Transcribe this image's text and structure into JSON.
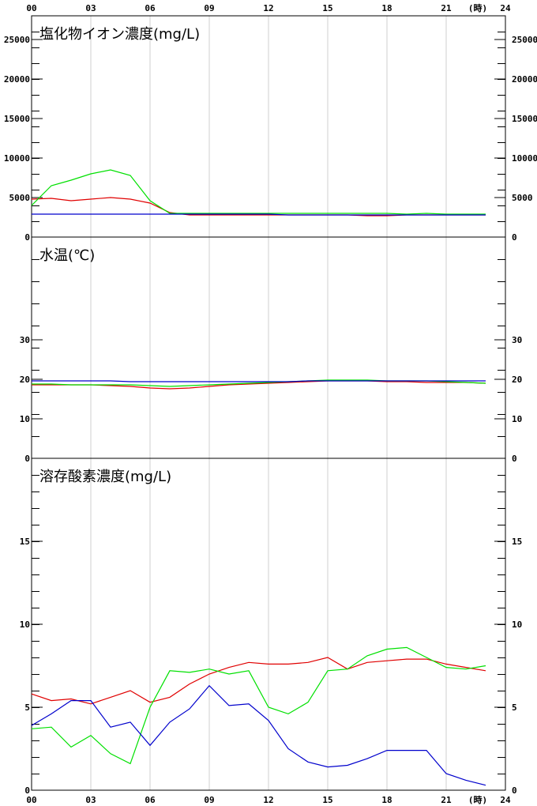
{
  "hour_axis": {
    "top_labels": [
      "00",
      "03",
      "06",
      "09",
      "12",
      "15",
      "18",
      "21",
      "24"
    ],
    "bottom_labels": [
      "00",
      "03",
      "06",
      "09",
      "12",
      "15",
      "18",
      "21",
      "24"
    ],
    "unit": "(時)"
  },
  "colors": {
    "red": "#e00000",
    "green": "#00e000",
    "blue": "#0000cc",
    "grid": "#cfcfcf"
  },
  "chart_data": [
    {
      "type": "line",
      "title": "塩化物イオン濃度(mg/L)",
      "x": [
        0,
        1,
        2,
        3,
        4,
        5,
        6,
        7,
        8,
        9,
        10,
        11,
        12,
        13,
        14,
        15,
        16,
        17,
        18,
        19,
        20,
        21,
        22,
        23
      ],
      "ylim": [
        0,
        28000
      ],
      "yticks": [
        0,
        5000,
        10000,
        15000,
        20000,
        25000
      ],
      "ytick_labels": [
        "0",
        "5000",
        "10000",
        "15000",
        "20000",
        "25000"
      ],
      "series": [
        {
          "color": "red",
          "values": [
            4800,
            4900,
            4600,
            4800,
            5000,
            4800,
            4300,
            3100,
            2800,
            2800,
            2800,
            2800,
            2800,
            2800,
            2800,
            2800,
            2800,
            2700,
            2700,
            2800,
            2800,
            2800,
            2800,
            2800
          ]
        },
        {
          "color": "green",
          "values": [
            4000,
            6500,
            7200,
            8000,
            8500,
            7800,
            4600,
            3000,
            3000,
            3000,
            3000,
            3000,
            3000,
            3000,
            3000,
            3000,
            3000,
            3000,
            3000,
            2900,
            3000,
            2900,
            2900,
            2900
          ]
        },
        {
          "color": "blue",
          "values": [
            2900,
            2900,
            2900,
            2900,
            2900,
            2900,
            2900,
            2900,
            2900,
            2900,
            2900,
            2900,
            2900,
            2800,
            2800,
            2800,
            2800,
            2800,
            2800,
            2800,
            2800,
            2800,
            2800,
            2800
          ]
        }
      ]
    },
    {
      "type": "line",
      "title": "水温(℃)",
      "x": [
        0,
        1,
        2,
        3,
        4,
        5,
        6,
        7,
        8,
        9,
        10,
        11,
        12,
        13,
        14,
        15,
        16,
        17,
        18,
        19,
        20,
        21,
        22,
        23
      ],
      "ylim": [
        0,
        56
      ],
      "yticks": [
        0,
        10,
        20,
        30
      ],
      "ytick_labels": [
        "0",
        "10",
        "20",
        "30"
      ],
      "series": [
        {
          "color": "red",
          "values": [
            18.6,
            18.6,
            18.6,
            18.6,
            18.4,
            18.2,
            17.8,
            17.6,
            17.8,
            18.2,
            18.6,
            18.8,
            19.0,
            19.2,
            19.4,
            19.6,
            19.6,
            19.6,
            19.4,
            19.4,
            19.2,
            19.2,
            19.2,
            19.0
          ]
        },
        {
          "color": "green",
          "values": [
            18.8,
            18.8,
            18.6,
            18.6,
            18.6,
            18.6,
            18.4,
            18.2,
            18.4,
            18.6,
            18.8,
            19.0,
            19.2,
            19.4,
            19.6,
            19.8,
            19.8,
            19.8,
            19.6,
            19.6,
            19.6,
            19.4,
            19.2,
            19.0
          ]
        },
        {
          "color": "blue",
          "values": [
            19.6,
            19.6,
            19.6,
            19.6,
            19.6,
            19.4,
            19.4,
            19.4,
            19.4,
            19.4,
            19.4,
            19.4,
            19.4,
            19.4,
            19.6,
            19.6,
            19.6,
            19.6,
            19.6,
            19.6,
            19.6,
            19.6,
            19.6,
            19.6
          ]
        }
      ]
    },
    {
      "type": "line",
      "title": "溶存酸素濃度(mg/L)",
      "x": [
        0,
        1,
        2,
        3,
        4,
        5,
        6,
        7,
        8,
        9,
        10,
        11,
        12,
        13,
        14,
        15,
        16,
        17,
        18,
        19,
        20,
        21,
        22,
        23
      ],
      "ylim": [
        0,
        20
      ],
      "yticks": [
        0,
        5,
        10,
        15
      ],
      "ytick_labels": [
        "0",
        "5",
        "10",
        "15"
      ],
      "series": [
        {
          "color": "red",
          "values": [
            5.8,
            5.4,
            5.5,
            5.2,
            5.6,
            6.0,
            5.3,
            5.6,
            6.4,
            7.0,
            7.4,
            7.7,
            7.6,
            7.6,
            7.7,
            8.0,
            7.3,
            7.7,
            7.8,
            7.9,
            7.9,
            7.6,
            7.4,
            7.2
          ]
        },
        {
          "color": "green",
          "values": [
            3.7,
            3.8,
            2.6,
            3.3,
            2.2,
            1.6,
            5.0,
            7.2,
            7.1,
            7.3,
            7.0,
            7.2,
            5.0,
            4.6,
            5.3,
            7.2,
            7.3,
            8.1,
            8.5,
            8.6,
            8.0,
            7.4,
            7.3,
            7.5
          ]
        },
        {
          "color": "blue",
          "values": [
            3.9,
            4.6,
            5.4,
            5.4,
            3.8,
            4.1,
            2.7,
            4.1,
            4.9,
            6.3,
            5.1,
            5.2,
            4.2,
            2.5,
            1.7,
            1.4,
            1.5,
            1.9,
            2.4,
            2.4,
            2.4,
            1.0,
            0.6,
            0.3
          ]
        }
      ]
    }
  ]
}
